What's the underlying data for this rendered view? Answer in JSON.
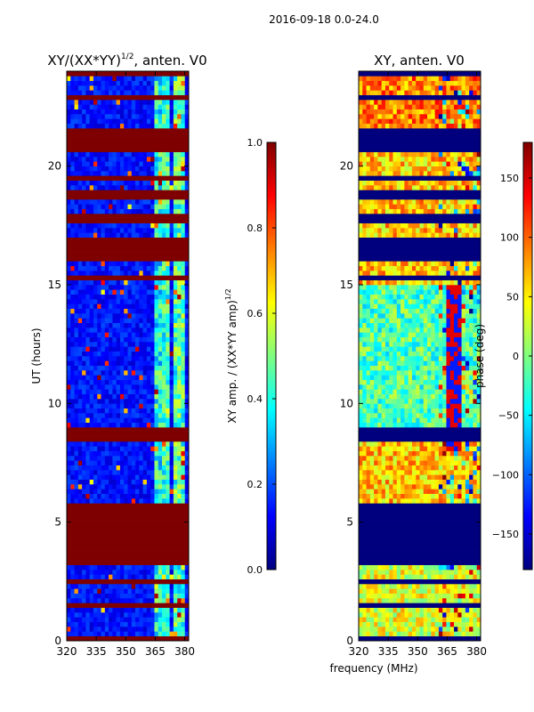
{
  "figure": {
    "suptitle": "2016-09-18 0.0-24.0",
    "xlabel": "frequency (MHz)"
  },
  "colormap": [
    "#00007f",
    "#0000ff",
    "#007fff",
    "#00ffff",
    "#7fff7f",
    "#ffff00",
    "#ff7f00",
    "#ff0000",
    "#7f0000"
  ],
  "chart_data": [
    {
      "type": "heatmap",
      "title_main": "XY/(XX*YY)",
      "title_sup": "1/2",
      "title_rest": ", anten. V0",
      "xlabel": "",
      "ylabel": "UT (hours)",
      "xlim": [
        320,
        382
      ],
      "ylim": [
        0,
        24
      ],
      "xticks": [
        320,
        335,
        350,
        365,
        380
      ],
      "yticks": [
        0,
        5,
        10,
        15,
        20
      ],
      "colorbar": {
        "label_main": "XY amp. / (XX*YY amp)",
        "label_sup": "1/2",
        "range": [
          0.0,
          1.0
        ],
        "ticks": [
          "0.0",
          "0.2",
          "0.4",
          "0.6",
          "0.8",
          "1.0"
        ]
      },
      "flagged_value": 1.0,
      "flagged_ut_ranges": [
        [
          0.0,
          0.25
        ],
        [
          1.45,
          1.6
        ],
        [
          2.5,
          2.7
        ],
        [
          3.3,
          3.5
        ],
        [
          3.5,
          5.9
        ],
        [
          8.5,
          9.0
        ],
        [
          15.3,
          15.5
        ],
        [
          16.1,
          17.1
        ],
        [
          17.7,
          18.0
        ],
        [
          18.7,
          19.1
        ],
        [
          19.5,
          19.7
        ],
        [
          20.7,
          21.7
        ],
        [
          22.0,
          22.1
        ],
        [
          22.8,
          22.95
        ],
        [
          23.8,
          24.0
        ]
      ],
      "ut_band_rows": [
        0,
        1,
        1.5,
        2,
        2.5,
        3,
        3.5,
        6,
        7,
        8.5,
        9,
        10,
        11,
        12,
        13,
        14,
        15,
        15.5,
        16,
        17,
        18,
        19,
        20,
        20.5,
        22,
        23,
        24
      ]
    },
    {
      "type": "heatmap",
      "title_main": "XY, anten. V0",
      "xlabel": "",
      "ylabel": "",
      "xlim": [
        320,
        382
      ],
      "ylim": [
        0,
        24
      ],
      "xticks": [
        320,
        335,
        350,
        365,
        380
      ],
      "yticks": [
        0,
        5,
        10,
        15,
        20
      ],
      "colorbar": {
        "label_main": "phase (deg)",
        "range": [
          -180,
          180
        ],
        "ticks": [
          "−150",
          "−100",
          "−50",
          "0",
          "50",
          "100",
          "150"
        ],
        "tick_values": [
          -150,
          -100,
          -50,
          0,
          50,
          100,
          150
        ]
      },
      "flagged_value": -180,
      "flagged_ut_ranges": [
        [
          0.0,
          0.25
        ],
        [
          1.45,
          1.6
        ],
        [
          2.5,
          2.7
        ],
        [
          3.3,
          3.5
        ],
        [
          3.5,
          5.9
        ],
        [
          8.5,
          9.0
        ],
        [
          15.3,
          15.5
        ],
        [
          16.1,
          17.1
        ],
        [
          17.7,
          18.0
        ],
        [
          18.7,
          19.1
        ],
        [
          19.5,
          19.7
        ],
        [
          20.7,
          21.7
        ],
        [
          22.0,
          22.1
        ],
        [
          22.8,
          22.95
        ],
        [
          23.8,
          24.0
        ]
      ]
    }
  ]
}
